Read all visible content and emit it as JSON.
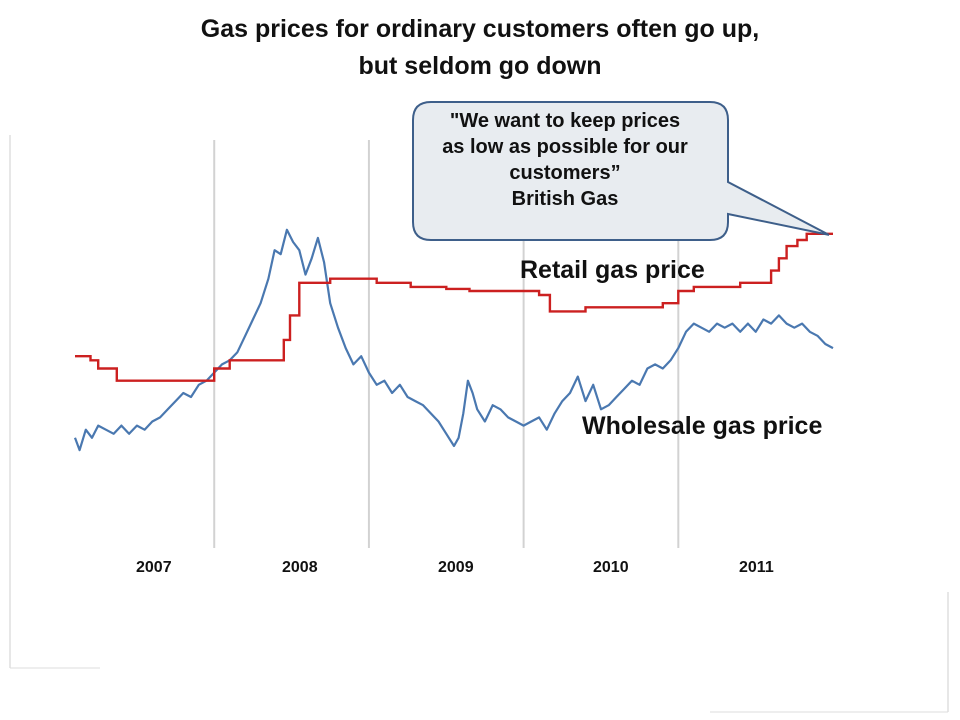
{
  "title": {
    "line1": "Gas prices for ordinary customers often go up,",
    "line2": "but seldom go down"
  },
  "callout": {
    "line1": "\"We want to keep prices",
    "line2": "as low as possible for our",
    "line3": "customers”",
    "line4": "British Gas"
  },
  "colors": {
    "retail": "#cc2020",
    "wholesale": "#4a78b0",
    "callout_fill": "#e8ecf0",
    "callout_stroke": "#3e5f8a",
    "gridline": "#d2d2d2"
  },
  "chart_data": {
    "type": "line",
    "x_unit": "year",
    "xlim": [
      2006.55,
      2011.45
    ],
    "ylim": [
      0,
      100
    ],
    "x_tick_labels": [
      "2007",
      "2008",
      "2009",
      "2010",
      "2011"
    ],
    "x_tick_positions": [
      2007,
      2008,
      2009,
      2010,
      2011
    ],
    "grid_x": [
      2007.45,
      2008.45,
      2009.45,
      2010.45
    ],
    "series": [
      {
        "name": "Retail gas price",
        "step": true,
        "points": [
          [
            2006.55,
            47
          ],
          [
            2006.65,
            47
          ],
          [
            2006.65,
            46
          ],
          [
            2006.7,
            46
          ],
          [
            2006.7,
            44
          ],
          [
            2006.82,
            44
          ],
          [
            2006.82,
            41
          ],
          [
            2007.45,
            41
          ],
          [
            2007.45,
            44
          ],
          [
            2007.55,
            44
          ],
          [
            2007.55,
            46
          ],
          [
            2007.9,
            46
          ],
          [
            2007.9,
            51
          ],
          [
            2007.94,
            51
          ],
          [
            2007.94,
            57
          ],
          [
            2008.0,
            57
          ],
          [
            2008.0,
            65
          ],
          [
            2008.2,
            65
          ],
          [
            2008.2,
            66
          ],
          [
            2008.5,
            66
          ],
          [
            2008.5,
            65
          ],
          [
            2008.72,
            65
          ],
          [
            2008.72,
            64
          ],
          [
            2008.95,
            64
          ],
          [
            2008.95,
            63.5
          ],
          [
            2009.1,
            63.5
          ],
          [
            2009.1,
            63
          ],
          [
            2009.55,
            63
          ],
          [
            2009.55,
            62
          ],
          [
            2009.62,
            62
          ],
          [
            2009.62,
            58
          ],
          [
            2009.85,
            58
          ],
          [
            2009.85,
            59
          ],
          [
            2010.35,
            59
          ],
          [
            2010.35,
            60
          ],
          [
            2010.45,
            60
          ],
          [
            2010.45,
            63
          ],
          [
            2010.55,
            63
          ],
          [
            2010.55,
            64
          ],
          [
            2010.85,
            64
          ],
          [
            2010.85,
            65
          ],
          [
            2011.05,
            65
          ],
          [
            2011.05,
            68
          ],
          [
            2011.1,
            68
          ],
          [
            2011.1,
            71
          ],
          [
            2011.15,
            71
          ],
          [
            2011.15,
            74
          ],
          [
            2011.22,
            74
          ],
          [
            2011.22,
            75.5
          ],
          [
            2011.28,
            75.5
          ],
          [
            2011.28,
            77
          ],
          [
            2011.45,
            77
          ]
        ]
      },
      {
        "name": "Wholesale gas price",
        "step": false,
        "points": [
          [
            2006.55,
            27
          ],
          [
            2006.58,
            24
          ],
          [
            2006.62,
            29
          ],
          [
            2006.66,
            27
          ],
          [
            2006.7,
            30
          ],
          [
            2006.75,
            29
          ],
          [
            2006.8,
            28
          ],
          [
            2006.85,
            30
          ],
          [
            2006.9,
            28
          ],
          [
            2006.95,
            30
          ],
          [
            2007.0,
            29
          ],
          [
            2007.05,
            31
          ],
          [
            2007.1,
            32
          ],
          [
            2007.15,
            34
          ],
          [
            2007.2,
            36
          ],
          [
            2007.25,
            38
          ],
          [
            2007.3,
            37
          ],
          [
            2007.35,
            40
          ],
          [
            2007.4,
            41
          ],
          [
            2007.45,
            43
          ],
          [
            2007.5,
            45
          ],
          [
            2007.55,
            46
          ],
          [
            2007.6,
            48
          ],
          [
            2007.65,
            52
          ],
          [
            2007.7,
            56
          ],
          [
            2007.75,
            60
          ],
          [
            2007.8,
            66
          ],
          [
            2007.84,
            73
          ],
          [
            2007.88,
            72
          ],
          [
            2007.92,
            78
          ],
          [
            2007.96,
            75
          ],
          [
            2008.0,
            73
          ],
          [
            2008.04,
            67
          ],
          [
            2008.08,
            71
          ],
          [
            2008.12,
            76
          ],
          [
            2008.16,
            70
          ],
          [
            2008.2,
            60
          ],
          [
            2008.25,
            54
          ],
          [
            2008.3,
            49
          ],
          [
            2008.35,
            45
          ],
          [
            2008.4,
            47
          ],
          [
            2008.45,
            43
          ],
          [
            2008.5,
            40
          ],
          [
            2008.55,
            41
          ],
          [
            2008.6,
            38
          ],
          [
            2008.65,
            40
          ],
          [
            2008.7,
            37
          ],
          [
            2008.75,
            36
          ],
          [
            2008.8,
            35
          ],
          [
            2008.85,
            33
          ],
          [
            2008.9,
            31
          ],
          [
            2008.95,
            28
          ],
          [
            2009.0,
            25
          ],
          [
            2009.03,
            27
          ],
          [
            2009.06,
            33
          ],
          [
            2009.09,
            41
          ],
          [
            2009.12,
            38
          ],
          [
            2009.15,
            34
          ],
          [
            2009.2,
            31
          ],
          [
            2009.25,
            35
          ],
          [
            2009.3,
            34
          ],
          [
            2009.35,
            32
          ],
          [
            2009.4,
            31
          ],
          [
            2009.45,
            30
          ],
          [
            2009.5,
            31
          ],
          [
            2009.55,
            32
          ],
          [
            2009.6,
            29
          ],
          [
            2009.65,
            33
          ],
          [
            2009.7,
            36
          ],
          [
            2009.75,
            38
          ],
          [
            2009.8,
            42
          ],
          [
            2009.85,
            36
          ],
          [
            2009.9,
            40
          ],
          [
            2009.95,
            34
          ],
          [
            2010.0,
            35
          ],
          [
            2010.05,
            37
          ],
          [
            2010.1,
            39
          ],
          [
            2010.15,
            41
          ],
          [
            2010.2,
            40
          ],
          [
            2010.25,
            44
          ],
          [
            2010.3,
            45
          ],
          [
            2010.35,
            44
          ],
          [
            2010.4,
            46
          ],
          [
            2010.45,
            49
          ],
          [
            2010.5,
            53
          ],
          [
            2010.55,
            55
          ],
          [
            2010.6,
            54
          ],
          [
            2010.65,
            53
          ],
          [
            2010.7,
            55
          ],
          [
            2010.75,
            54
          ],
          [
            2010.8,
            55
          ],
          [
            2010.85,
            53
          ],
          [
            2010.9,
            55
          ],
          [
            2010.95,
            53
          ],
          [
            2011.0,
            56
          ],
          [
            2011.05,
            55
          ],
          [
            2011.1,
            57
          ],
          [
            2011.15,
            55
          ],
          [
            2011.2,
            54
          ],
          [
            2011.25,
            55
          ],
          [
            2011.3,
            53
          ],
          [
            2011.35,
            52
          ],
          [
            2011.4,
            50
          ],
          [
            2011.45,
            49
          ]
        ]
      }
    ]
  }
}
